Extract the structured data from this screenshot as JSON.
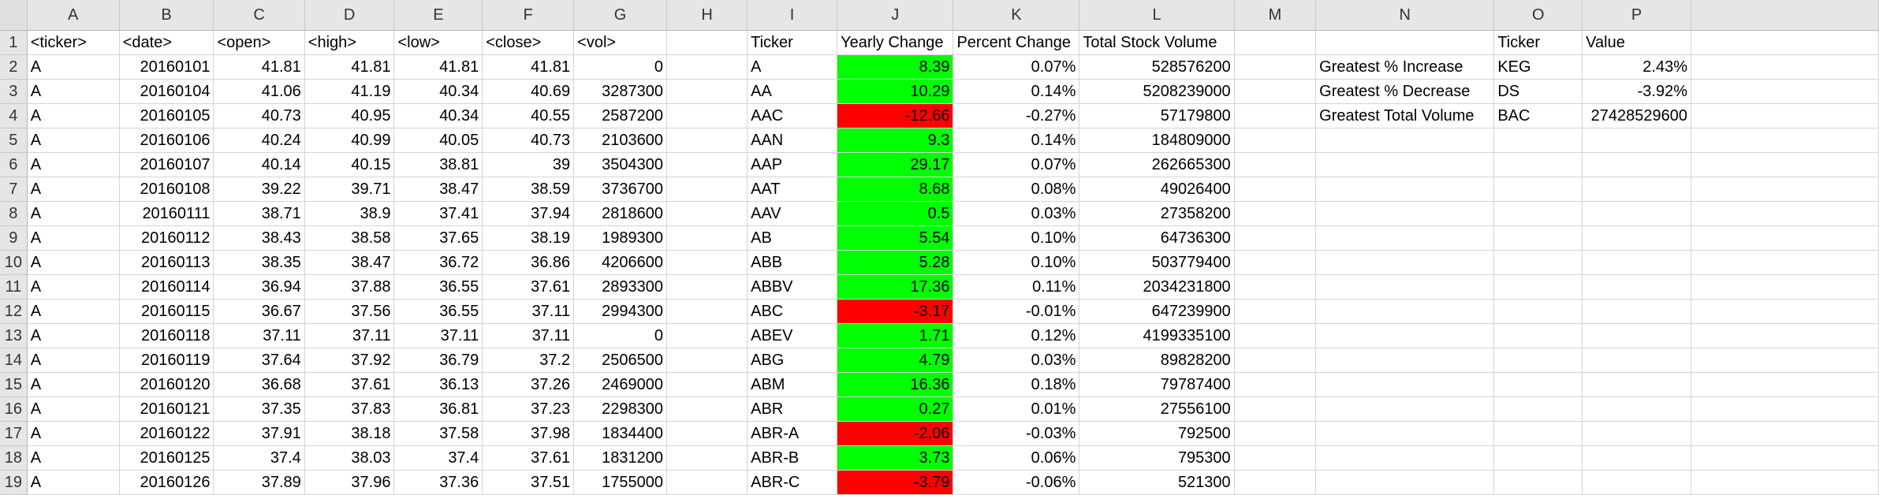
{
  "app": "Spreadsheet",
  "columns": [
    "A",
    "B",
    "C",
    "D",
    "E",
    "F",
    "G",
    "H",
    "I",
    "J",
    "K",
    "L",
    "M",
    "N",
    "O",
    "P",
    ""
  ],
  "colors": {
    "positive_fill": "#00ff00",
    "negative_fill": "#ff0000",
    "header_bg": "#e6e6e6"
  },
  "rows": [
    {
      "n": "1",
      "c": [
        "<ticker>",
        "<date>",
        "<open>",
        "<high>",
        "<low>",
        "<close>",
        "<vol>",
        "",
        "Ticker",
        "Yearly Change",
        "Percent Change",
        "Total Stock Volume",
        "",
        "",
        "Ticker",
        "Value",
        ""
      ]
    },
    {
      "n": "2",
      "c": [
        "A",
        "20160101",
        "41.81",
        "41.81",
        "41.81",
        "41.81",
        "0",
        "",
        "A",
        "8.39",
        "0.07%",
        "528576200",
        "",
        "Greatest % Increase",
        "KEG",
        "2.43%",
        ""
      ]
    },
    {
      "n": "3",
      "c": [
        "A",
        "20160104",
        "41.06",
        "41.19",
        "40.34",
        "40.69",
        "3287300",
        "",
        "AA",
        "10.29",
        "0.14%",
        "5208239000",
        "",
        "Greatest % Decrease",
        "DS",
        "-3.92%",
        ""
      ]
    },
    {
      "n": "4",
      "c": [
        "A",
        "20160105",
        "40.73",
        "40.95",
        "40.34",
        "40.55",
        "2587200",
        "",
        "AAC",
        "-12.66",
        "-0.27%",
        "57179800",
        "",
        "Greatest Total Volume",
        "BAC",
        "27428529600",
        ""
      ]
    },
    {
      "n": "5",
      "c": [
        "A",
        "20160106",
        "40.24",
        "40.99",
        "40.05",
        "40.73",
        "2103600",
        "",
        "AAN",
        "9.3",
        "0.14%",
        "184809000",
        "",
        "",
        "",
        "",
        ""
      ]
    },
    {
      "n": "6",
      "c": [
        "A",
        "20160107",
        "40.14",
        "40.15",
        "38.81",
        "39",
        "3504300",
        "",
        "AAP",
        "29.17",
        "0.07%",
        "262665300",
        "",
        "",
        "",
        "",
        ""
      ]
    },
    {
      "n": "7",
      "c": [
        "A",
        "20160108",
        "39.22",
        "39.71",
        "38.47",
        "38.59",
        "3736700",
        "",
        "AAT",
        "8.68",
        "0.08%",
        "49026400",
        "",
        "",
        "",
        "",
        ""
      ]
    },
    {
      "n": "8",
      "c": [
        "A",
        "20160111",
        "38.71",
        "38.9",
        "37.41",
        "37.94",
        "2818600",
        "",
        "AAV",
        "0.5",
        "0.03%",
        "27358200",
        "",
        "",
        "",
        "",
        ""
      ]
    },
    {
      "n": "9",
      "c": [
        "A",
        "20160112",
        "38.43",
        "38.58",
        "37.65",
        "38.19",
        "1989300",
        "",
        "AB",
        "5.54",
        "0.10%",
        "64736300",
        "",
        "",
        "",
        "",
        ""
      ]
    },
    {
      "n": "10",
      "c": [
        "A",
        "20160113",
        "38.35",
        "38.47",
        "36.72",
        "36.86",
        "4206600",
        "",
        "ABB",
        "5.28",
        "0.10%",
        "503779400",
        "",
        "",
        "",
        "",
        ""
      ]
    },
    {
      "n": "11",
      "c": [
        "A",
        "20160114",
        "36.94",
        "37.88",
        "36.55",
        "37.61",
        "2893300",
        "",
        "ABBV",
        "17.36",
        "0.11%",
        "2034231800",
        "",
        "",
        "",
        "",
        ""
      ]
    },
    {
      "n": "12",
      "c": [
        "A",
        "20160115",
        "36.67",
        "37.56",
        "36.55",
        "37.11",
        "2994300",
        "",
        "ABC",
        "-3.17",
        "-0.01%",
        "647239900",
        "",
        "",
        "",
        "",
        ""
      ]
    },
    {
      "n": "13",
      "c": [
        "A",
        "20160118",
        "37.11",
        "37.11",
        "37.11",
        "37.11",
        "0",
        "",
        "ABEV",
        "1.71",
        "0.12%",
        "4199335100",
        "",
        "",
        "",
        "",
        ""
      ]
    },
    {
      "n": "14",
      "c": [
        "A",
        "20160119",
        "37.64",
        "37.92",
        "36.79",
        "37.2",
        "2506500",
        "",
        "ABG",
        "4.79",
        "0.03%",
        "89828200",
        "",
        "",
        "",
        "",
        ""
      ]
    },
    {
      "n": "15",
      "c": [
        "A",
        "20160120",
        "36.68",
        "37.61",
        "36.13",
        "37.26",
        "2469000",
        "",
        "ABM",
        "16.36",
        "0.18%",
        "79787400",
        "",
        "",
        "",
        "",
        ""
      ]
    },
    {
      "n": "16",
      "c": [
        "A",
        "20160121",
        "37.35",
        "37.83",
        "36.81",
        "37.23",
        "2298300",
        "",
        "ABR",
        "0.27",
        "0.01%",
        "27556100",
        "",
        "",
        "",
        "",
        ""
      ]
    },
    {
      "n": "17",
      "c": [
        "A",
        "20160122",
        "37.91",
        "38.18",
        "37.58",
        "37.98",
        "1834400",
        "",
        "ABR-A",
        "-2.06",
        "-0.03%",
        "792500",
        "",
        "",
        "",
        "",
        ""
      ]
    },
    {
      "n": "18",
      "c": [
        "A",
        "20160125",
        "37.4",
        "38.03",
        "37.4",
        "37.61",
        "1831200",
        "",
        "ABR-B",
        "3.73",
        "0.06%",
        "795300",
        "",
        "",
        "",
        "",
        ""
      ]
    },
    {
      "n": "19",
      "c": [
        "A",
        "20160126",
        "37.89",
        "37.96",
        "37.36",
        "37.51",
        "1755000",
        "",
        "ABR-C",
        "-3.79",
        "-0.06%",
        "521300",
        "",
        "",
        "",
        "",
        ""
      ]
    }
  ]
}
